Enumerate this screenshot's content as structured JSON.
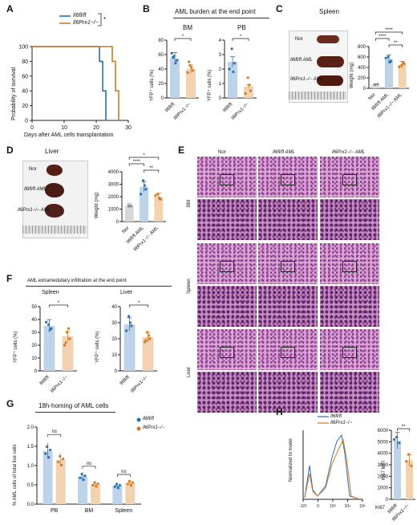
{
  "panels": {
    "A": {
      "label": "A",
      "ylabel": "Probability of survival",
      "xlabel": "Days after AML cells transplantation",
      "legend": [
        {
          "name": "Il6fl/fl",
          "color": "#2e6fb0"
        },
        {
          "name": "Il6Prx1−/−",
          "color": "#d07a28"
        }
      ],
      "sig": "*",
      "yticks": [
        "0",
        "20",
        "40",
        "60",
        "80",
        "100"
      ],
      "xticks": [
        "0",
        "10",
        "20",
        "30"
      ]
    },
    "B": {
      "label": "B",
      "title": "AML burden at the end point",
      "sub1": "BM",
      "sub2": "PB",
      "ylabel": "YFP⁺ cells (%)",
      "sig1": "*",
      "sig2": "*",
      "yticks1": [
        "0",
        "20",
        "40",
        "60",
        "80"
      ],
      "yticks2": [
        "0",
        "1",
        "2",
        "3",
        "4"
      ],
      "xcat": [
        "Il6fl/fl",
        "Il6Prx1−/−"
      ]
    },
    "C": {
      "label": "C",
      "title": "Spleen",
      "rows": [
        "Nor",
        "Il6fl/fl AML",
        "Il6Prx1−/− AML"
      ],
      "ylabel": "Weight (mg)",
      "yticks": [
        "0",
        "200",
        "400",
        "600",
        "800"
      ],
      "xcat": [
        "Nor",
        "Il6fl/fl AML",
        "Il6Prx1−/− AML"
      ],
      "sigs": [
        "****",
        "****",
        "**"
      ],
      "ruler": "1cm  2   3"
    },
    "D": {
      "label": "D",
      "title": "Liver",
      "rows": [
        "Nor",
        "Il6fl/fl AML",
        "Il6Prx1−/− AML"
      ],
      "ylabel": "Weight (mg)",
      "yticks": [
        "0",
        "1000",
        "2000",
        "3000",
        "4000"
      ],
      "xcat": [
        "Nor",
        "Il6fl/fl AML",
        "Il6Prx1−/− AML"
      ],
      "sigs": [
        "*",
        "****",
        "**"
      ]
    },
    "E": {
      "label": "E",
      "cols": [
        "Nor",
        "Il6fl/fl AML",
        "Il6Prx1−/− AML"
      ],
      "rows": [
        "BM",
        "Spleen",
        "Liver"
      ]
    },
    "F": {
      "label": "F",
      "title": "AML extramedullary infiltration at the end point",
      "sub1": "Spleen",
      "sub2": "Liver",
      "ylabel": "YFP⁺ cells (%)",
      "sig1": "*",
      "sig2": "*",
      "yticks1": [
        "0",
        "10",
        "20",
        "30",
        "40",
        "50"
      ],
      "yticks2": [
        "0",
        "10",
        "20",
        "30",
        "40"
      ],
      "xcat": [
        "Il6fl/fl",
        "Il6Prx1−/−"
      ]
    },
    "G": {
      "label": "G",
      "title": "18h-homing of AML cells",
      "ylabel": "% AML cells of total live cells",
      "yticks": [
        "0.0",
        "0.5",
        "1.0",
        "1.5",
        "2.0"
      ],
      "groups": [
        "PB",
        "BM",
        "Spleen"
      ],
      "sigs": [
        "ns",
        "ns",
        "ns"
      ],
      "legend": [
        "Il6fl/fl",
        "Il6Prx1−/−"
      ]
    },
    "H": {
      "label": "H",
      "ylabel": "Normalized to mode",
      "xlabel": "Ki67",
      "legend": [
        "Il6fl/fl",
        "Il6Prx1−/−"
      ],
      "xticks": [
        "-10³",
        "0",
        "10³",
        "10⁴",
        "10⁵"
      ],
      "ylabel2": "Ki67 MFI",
      "yticks2": [
        "0",
        "1000",
        "2000",
        "3000",
        "4000",
        "5000",
        "6000"
      ],
      "sig": "**",
      "xcat": [
        "Il6fl/fl",
        "Il6Prx1−/−"
      ]
    }
  },
  "chart_data": [
    {
      "type": "line",
      "title": "",
      "xlabel": "Days after AML cells transplantation",
      "ylabel": "Probability of survival",
      "series": [
        {
          "name": "Il6fl/fl",
          "x": [
            0,
            21,
            21,
            22,
            22,
            23,
            23
          ],
          "y": [
            100,
            100,
            80,
            80,
            40,
            40,
            0
          ]
        },
        {
          "name": "Il6Prx1−/−",
          "x": [
            0,
            25,
            25,
            26,
            26,
            27,
            27
          ],
          "y": [
            100,
            100,
            80,
            80,
            40,
            40,
            0
          ]
        }
      ],
      "xlim": [
        0,
        30
      ],
      "ylim": [
        0,
        100
      ]
    },
    {
      "type": "bar",
      "title": "BM",
      "ylabel": "YFP⁺ cells (%)",
      "categories": [
        "Il6fl/fl",
        "Il6Prx1−/−"
      ],
      "values": [
        55,
        40
      ],
      "ylim": [
        0,
        80
      ]
    },
    {
      "type": "bar",
      "title": "PB",
      "ylabel": "YFP⁺ cells (%)",
      "categories": [
        "Il6fl/fl",
        "Il6Prx1−/−"
      ],
      "values": [
        2.5,
        0.8
      ],
      "ylim": [
        0,
        4
      ]
    },
    {
      "type": "bar",
      "title": "Spleen",
      "ylabel": "Weight (mg)",
      "categories": [
        "Nor",
        "Il6fl/fl AML",
        "Il6Prx1−/− AML"
      ],
      "values": [
        75,
        560,
        450
      ],
      "ylim": [
        0,
        800
      ]
    },
    {
      "type": "bar",
      "title": "Liver",
      "ylabel": "Weight (mg)",
      "categories": [
        "Nor",
        "Il6fl/fl AML",
        "Il6Prx1−/− AML"
      ],
      "values": [
        1250,
        2800,
        2000
      ],
      "ylim": [
        0,
        4000
      ]
    },
    {
      "type": "bar",
      "title": "Spleen",
      "ylabel": "YFP⁺ cells (%)",
      "categories": [
        "Il6fl/fl",
        "Il6Prx1−/−"
      ],
      "values": [
        35,
        27
      ],
      "ylim": [
        0,
        50
      ]
    },
    {
      "type": "bar",
      "title": "Liver",
      "ylabel": "YFP⁺ cells (%)",
      "categories": [
        "Il6fl/fl",
        "Il6Prx1−/−"
      ],
      "values": [
        29,
        21
      ],
      "ylim": [
        0,
        40
      ]
    },
    {
      "type": "bar",
      "title": "18h-homing of AML cells",
      "ylabel": "% AML cells of total live cells",
      "categories": [
        "PB",
        "BM",
        "Spleen"
      ],
      "series": [
        {
          "name": "Il6fl/fl",
          "values": [
            1.38,
            0.72,
            0.48
          ]
        },
        {
          "name": "Il6Prx1−/−",
          "values": [
            1.15,
            0.52,
            0.55
          ]
        }
      ],
      "ylim": [
        0,
        2.0
      ]
    },
    {
      "type": "bar",
      "title": "",
      "ylabel": "Ki67 MFI",
      "categories": [
        "Il6fl/fl",
        "Il6Prx1−/−"
      ],
      "values": [
        5100,
        3400
      ],
      "ylim": [
        0,
        6000
      ]
    }
  ]
}
